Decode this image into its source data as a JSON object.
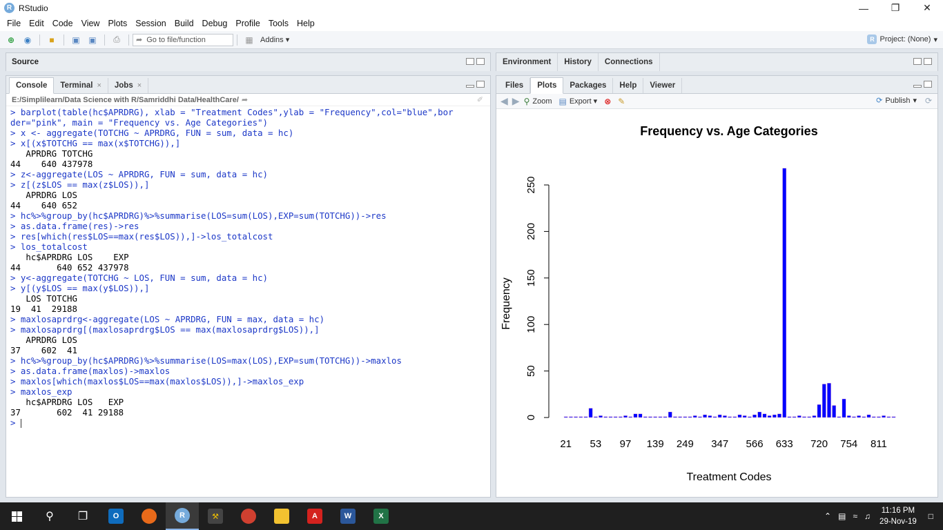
{
  "window": {
    "title": "RStudio",
    "app_icon": "R"
  },
  "menu": [
    "File",
    "Edit",
    "Code",
    "View",
    "Plots",
    "Session",
    "Build",
    "Debug",
    "Profile",
    "Tools",
    "Help"
  ],
  "toolbar": {
    "goto_placeholder": "Go to file/function",
    "addins_label": "Addins",
    "project_label": "Project: (None)"
  },
  "source_pane": {
    "title": "Source"
  },
  "console_pane": {
    "tabs": [
      "Console",
      "Terminal",
      "Jobs"
    ],
    "path": "E:/Simplilearn/Data Science with R/Samriddhi Data/HealthCare/",
    "lines": [
      {
        "t": "cmd",
        "s": "> barplot(table(hc$APRDRG), xlab = \"Treatment Codes\",ylab = \"Frequency\",col=\"blue\",bor"
      },
      {
        "t": "cmd",
        "s": "der=\"pink\", main = \"Frequency vs. Age Categories\")"
      },
      {
        "t": "cmd",
        "s": "> x <- aggregate(TOTCHG ~ APRDRG, FUN = sum, data = hc)"
      },
      {
        "t": "cmd",
        "s": "> x[(x$TOTCHG == max(x$TOTCHG)),]"
      },
      {
        "t": "out",
        "s": "   APRDRG TOTCHG"
      },
      {
        "t": "out",
        "s": "44    640 437978"
      },
      {
        "t": "cmd",
        "s": "> z<-aggregate(LOS ~ APRDRG, FUN = sum, data = hc)"
      },
      {
        "t": "cmd",
        "s": "> z[(z$LOS == max(z$LOS)),]"
      },
      {
        "t": "out",
        "s": "   APRDRG LOS"
      },
      {
        "t": "out",
        "s": "44    640 652"
      },
      {
        "t": "cmd",
        "s": "> hc%>%group_by(hc$APRDRG)%>%summarise(LOS=sum(LOS),EXP=sum(TOTCHG))->res"
      },
      {
        "t": "cmd",
        "s": "> as.data.frame(res)->res"
      },
      {
        "t": "cmd",
        "s": "> res[which(res$LOS==max(res$LOS)),]->los_totalcost"
      },
      {
        "t": "cmd",
        "s": "> los_totalcost"
      },
      {
        "t": "out",
        "s": "   hc$APRDRG LOS    EXP"
      },
      {
        "t": "out",
        "s": "44       640 652 437978"
      },
      {
        "t": "cmd",
        "s": "> y<-aggregate(TOTCHG ~ LOS, FUN = sum, data = hc)"
      },
      {
        "t": "cmd",
        "s": "> y[(y$LOS == max(y$LOS)),]"
      },
      {
        "t": "out",
        "s": "   LOS TOTCHG"
      },
      {
        "t": "out",
        "s": "19  41  29188"
      },
      {
        "t": "cmd",
        "s": "> maxlosaprdrg<-aggregate(LOS ~ APRDRG, FUN = max, data = hc)"
      },
      {
        "t": "cmd",
        "s": "> maxlosaprdrg[(maxlosaprdrg$LOS == max(maxlosaprdrg$LOS)),]"
      },
      {
        "t": "out",
        "s": "   APRDRG LOS"
      },
      {
        "t": "out",
        "s": "37    602  41"
      },
      {
        "t": "cmd",
        "s": "> hc%>%group_by(hc$APRDRG)%>%summarise(LOS=max(LOS),EXP=sum(TOTCHG))->maxlos"
      },
      {
        "t": "cmd",
        "s": "> as.data.frame(maxlos)->maxlos"
      },
      {
        "t": "cmd",
        "s": "> maxlos[which(maxlos$LOS==max(maxlos$LOS)),]->maxlos_exp"
      },
      {
        "t": "cmd",
        "s": "> maxlos_exp"
      },
      {
        "t": "out",
        "s": "   hc$APRDRG LOS   EXP"
      },
      {
        "t": "out",
        "s": "37       602  41 29188"
      }
    ],
    "prompt": "> "
  },
  "env_pane": {
    "tabs": [
      "Environment",
      "History",
      "Connections"
    ]
  },
  "files_pane": {
    "tabs": [
      "Files",
      "Plots",
      "Packages",
      "Help",
      "Viewer"
    ],
    "zoom_label": "Zoom",
    "export_label": "Export",
    "publish_label": "Publish"
  },
  "chart_data": {
    "type": "bar",
    "title": "Frequency vs. Age Categories",
    "xlabel": "Treatment Codes",
    "ylabel": "Frequency",
    "ylim": [
      0,
      270
    ],
    "yticks": [
      0,
      50,
      100,
      150,
      200,
      250
    ],
    "xtick_labels": [
      "21",
      "53",
      "97",
      "139",
      "249",
      "347",
      "566",
      "633",
      "720",
      "754",
      "811"
    ],
    "bar_color": "#0000ff",
    "border_color": "#ffc0cb",
    "values": [
      1,
      1,
      1,
      1,
      1,
      10,
      1,
      2,
      1,
      1,
      1,
      1,
      2,
      1,
      4,
      4,
      1,
      1,
      1,
      1,
      1,
      6,
      1,
      1,
      1,
      1,
      2,
      1,
      3,
      2,
      1,
      3,
      2,
      1,
      1,
      3,
      2,
      1,
      3,
      6,
      4,
      2,
      3,
      4,
      268,
      1,
      1,
      2,
      1,
      1,
      2,
      14,
      36,
      37,
      13,
      1,
      20,
      2,
      1,
      2,
      1,
      3,
      1,
      1,
      2,
      1,
      1
    ]
  },
  "taskbar": {
    "time": "11:16 PM",
    "date": "29-Nov-19"
  }
}
